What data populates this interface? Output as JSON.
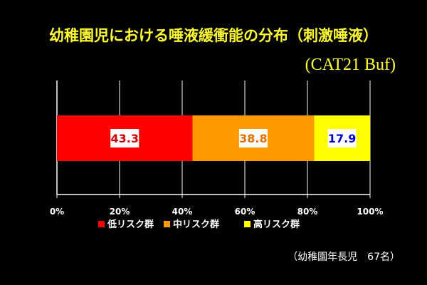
{
  "chart_data": {
    "type": "bar",
    "orientation": "horizontal",
    "stacked": true,
    "title": "幼稚園児における唾液緩衝能の分布（刺激唾液）",
    "subtitle": "(CAT21 Buf)",
    "note": "（幼稚園年長児　67名）",
    "series": [
      {
        "name": "低リスク群",
        "value": 43.3,
        "label": "43.3"
      },
      {
        "name": "中リスク群",
        "value": 38.8,
        "label": "38.8"
      },
      {
        "name": "高リスク群",
        "value": 17.9,
        "label": "17.9"
      }
    ],
    "xlim": [
      0,
      100
    ],
    "x_ticks": [
      "0%",
      "20%",
      "40%",
      "60%",
      "80%",
      "100%"
    ],
    "grid": true,
    "legend_position": "bottom"
  },
  "colors": {
    "background": "#000000",
    "title": "#ffff33",
    "note": "#ffffff",
    "axis": "#ffffff",
    "grid": "#ffffff",
    "series": [
      "#ff0000",
      "#ff9900",
      "#ffff00"
    ],
    "value_label_text": [
      "#cc0000",
      "#e07000",
      "#0000cc"
    ],
    "value_label_box": "#ffffff"
  }
}
